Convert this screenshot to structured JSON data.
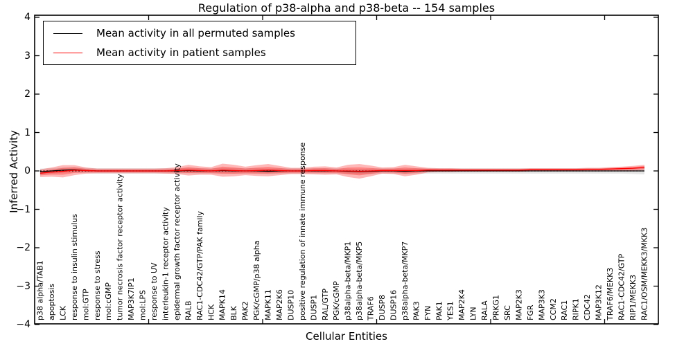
{
  "title": "Regulation of p38-alpha and p38-beta -- 154 samples",
  "legend": {
    "items": [
      {
        "label": "Mean activity in all permuted samples",
        "color": "#000000"
      },
      {
        "label": "Mean activity in patient samples",
        "color": "#ff0000"
      }
    ]
  },
  "colors": {
    "permuted_line": "#000000",
    "patient_line": "#ff0000",
    "patient_band": "rgba(255,0,0,0.28)",
    "permuted_band": "rgba(0,0,0,0.10)",
    "zero_line": "#000000",
    "spine": "#000000"
  },
  "chart_data": {
    "type": "line",
    "title": "Regulation of p38-alpha and p38-beta -- 154 samples",
    "xlabel": "Cellular Entities",
    "ylabel": "Inferred Activity",
    "ylim": [
      -4,
      4
    ],
    "yticks": [
      4,
      3,
      2,
      1,
      0,
      -1,
      -2,
      -3,
      -4
    ],
    "x_major_ticks": [
      10,
      20,
      30,
      40,
      50
    ],
    "grid": false,
    "legend_position": "upper left",
    "zero_line": {
      "value": 0,
      "style": "dotted",
      "color": "#000000"
    },
    "categories": [
      "p38 alpha/TAB1",
      "apoptosis",
      "LCK",
      "response to insulin stimulus",
      "mol:GTP",
      "response to stress",
      "mol:cGMP",
      "tumor necrosis factor receptor activity",
      "MAP3K7IP1",
      "mol:LPS",
      "response to UV",
      "interleukin-1 receptor activity",
      "epidermal growth factor receptor activity",
      "RALB",
      "RAC1-CDC42/GTP/PAK family",
      "HCK",
      "MAPK14",
      "BLK",
      "PAK2",
      "PGK/cGMP/p38 alpha",
      "MAPK11",
      "MAP2K6",
      "DUSP10",
      "positive regulation of innate immune response",
      "DUSP1",
      "RAL/GTP",
      "PGK/cGMP",
      "p38alpha-beta/MKP1",
      "p38alpha-beta/MKP5",
      "TRAF6",
      "DUSP8",
      "DUSP16",
      "p38alpha-beta/MKP7",
      "PAK3",
      "FYN",
      "PAK1",
      "YES1",
      "MAP2K4",
      "LYN",
      "RALA",
      "PRKG1",
      "SRC",
      "MAP2K3",
      "FGR",
      "MAP3K3",
      "CCM2",
      "RAC1",
      "RIPK1",
      "CDC42",
      "MAP3K12",
      "TRAF6/MEKK3",
      "RAC1-CDC42/GTP",
      "RIP1/MEKK3",
      "RAC1/OSM/MEKK3/MKK3"
    ],
    "series": [
      {
        "name": "Mean activity in all permuted samples",
        "color": "#000000",
        "band_color": "rgba(0,0,0,0.10)",
        "values": [
          -0.02,
          0.0,
          0.02,
          0.03,
          0.01,
          0.0,
          0.0,
          0.0,
          0.0,
          0.0,
          0.0,
          0.0,
          0.0,
          0.01,
          0.0,
          0.0,
          0.01,
          0.0,
          0.0,
          0.0,
          -0.01,
          0.0,
          0.0,
          0.0,
          0.0,
          0.0,
          0.0,
          -0.01,
          -0.02,
          -0.01,
          0.0,
          0.0,
          -0.01,
          0.0,
          0.0,
          0.0,
          0.0,
          0.0,
          0.0,
          0.0,
          0.0,
          0.0,
          0.0,
          0.0,
          0.0,
          0.0,
          0.0,
          0.0,
          0.0,
          0.0,
          0.0,
          0.0,
          0.0,
          0.0
        ],
        "band_halfwidth": [
          0.08,
          0.07,
          0.07,
          0.07,
          0.07,
          0.07,
          0.07,
          0.07,
          0.07,
          0.07,
          0.07,
          0.07,
          0.07,
          0.07,
          0.07,
          0.07,
          0.07,
          0.07,
          0.07,
          0.07,
          0.07,
          0.07,
          0.07,
          0.07,
          0.07,
          0.07,
          0.07,
          0.07,
          0.07,
          0.07,
          0.07,
          0.07,
          0.07,
          0.07,
          0.07,
          0.07,
          0.07,
          0.07,
          0.07,
          0.07,
          0.07,
          0.07,
          0.07,
          0.07,
          0.07,
          0.07,
          0.07,
          0.07,
          0.07,
          0.07,
          0.07,
          0.07,
          0.08,
          0.09
        ]
      },
      {
        "name": "Mean activity in patient samples",
        "color": "#ff0000",
        "band_color": "rgba(255,0,0,0.28)",
        "values": [
          -0.06,
          -0.03,
          -0.01,
          0.02,
          0.01,
          0.0,
          0.0,
          0.0,
          0.0,
          0.0,
          0.0,
          0.0,
          0.01,
          0.02,
          0.01,
          0.0,
          0.02,
          0.01,
          0.0,
          0.01,
          0.02,
          0.01,
          0.0,
          0.0,
          0.01,
          0.01,
          0.0,
          0.0,
          -0.01,
          0.0,
          0.01,
          0.01,
          0.01,
          0.01,
          0.02,
          0.02,
          0.02,
          0.02,
          0.02,
          0.02,
          0.02,
          0.02,
          0.02,
          0.03,
          0.03,
          0.03,
          0.03,
          0.03,
          0.04,
          0.04,
          0.05,
          0.06,
          0.07,
          0.09
        ],
        "band_halfwidth": [
          0.1,
          0.12,
          0.16,
          0.13,
          0.08,
          0.06,
          0.06,
          0.06,
          0.06,
          0.06,
          0.06,
          0.07,
          0.09,
          0.14,
          0.11,
          0.1,
          0.17,
          0.15,
          0.11,
          0.14,
          0.16,
          0.12,
          0.08,
          0.08,
          0.1,
          0.11,
          0.09,
          0.16,
          0.19,
          0.14,
          0.08,
          0.09,
          0.15,
          0.11,
          0.06,
          0.05,
          0.05,
          0.04,
          0.04,
          0.04,
          0.04,
          0.04,
          0.04,
          0.04,
          0.04,
          0.04,
          0.04,
          0.04,
          0.04,
          0.04,
          0.05,
          0.05,
          0.06,
          0.07
        ]
      }
    ]
  }
}
